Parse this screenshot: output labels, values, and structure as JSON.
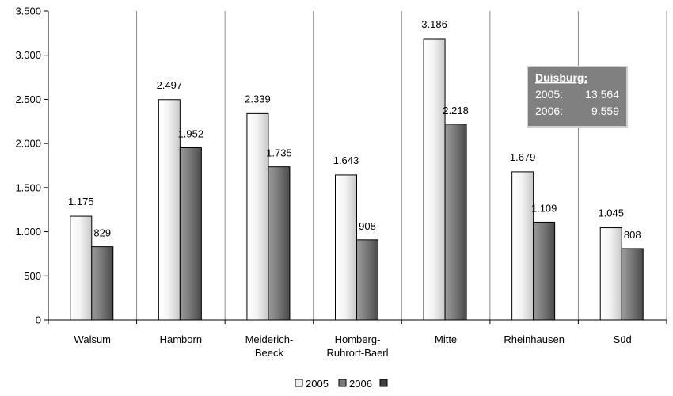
{
  "chart_data": {
    "type": "bar",
    "categories": [
      [
        "Walsum"
      ],
      [
        "Hamborn"
      ],
      [
        "Meiderich-",
        "Beeck"
      ],
      [
        "Homberg-",
        "Ruhrort-Baerl"
      ],
      [
        "Mitte"
      ],
      [
        "Rheinhausen"
      ],
      [
        "Süd"
      ]
    ],
    "series": [
      {
        "name": "2005",
        "values": [
          1175,
          2497,
          2339,
          1643,
          3186,
          1679,
          1045
        ],
        "labels": [
          "1.175",
          "2.497",
          "2.339",
          "1.643",
          "3.186",
          "1.679",
          "1.045"
        ],
        "color": "#e8e8e8"
      },
      {
        "name": "2006",
        "values": [
          829,
          1952,
          1735,
          908,
          2218,
          1109,
          808
        ],
        "labels": [
          "829",
          "1.952",
          "1.735",
          "908",
          "2.218",
          "1.109",
          "808"
        ],
        "color": "#7a7a7a"
      }
    ],
    "legend_extra_marker_color": "#404040",
    "ylim": [
      0,
      3500
    ],
    "yticks": [
      0,
      500,
      1000,
      1500,
      2000,
      2500,
      3000,
      3500
    ],
    "ytick_labels": [
      "0",
      "500",
      "1.000",
      "1.500",
      "2.000",
      "2.500",
      "3.000",
      "3.500"
    ],
    "grid": "vertical",
    "legend_position": "bottom-center",
    "annotation": {
      "title": "Duisburg:",
      "rows": [
        {
          "label": "2005:",
          "value": "13.564"
        },
        {
          "label": "2006:",
          "value": "9.559"
        }
      ],
      "background": "#808080"
    }
  }
}
